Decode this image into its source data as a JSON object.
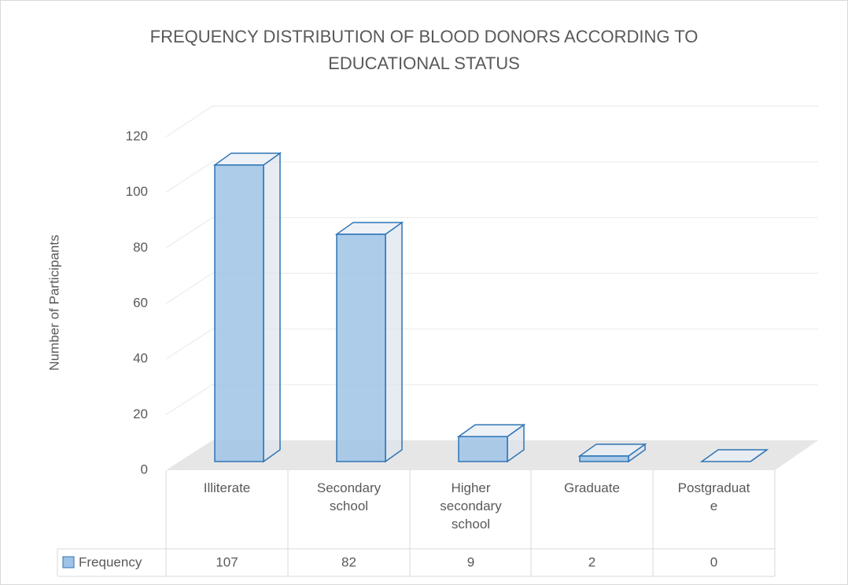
{
  "chart_data": {
    "type": "bar3d",
    "title": "FREQUENCY DISTRIBUTION OF BLOOD DONORS ACCORDING TO EDUCATIONAL STATUS",
    "y_label": "Number of Participants",
    "categories": [
      "Illiterate",
      "Secondary school",
      "Higher secondary school",
      "Graduate",
      "Postgraduate"
    ],
    "series": [
      {
        "name": "Frequency",
        "color": "#9dc3e6",
        "values": [
          107,
          82,
          9,
          2,
          0
        ]
      }
    ],
    "ylim": [
      0,
      120
    ],
    "yticks": [
      0,
      20,
      40,
      60,
      80,
      100,
      120
    ],
    "grid": true,
    "data_table": true
  }
}
